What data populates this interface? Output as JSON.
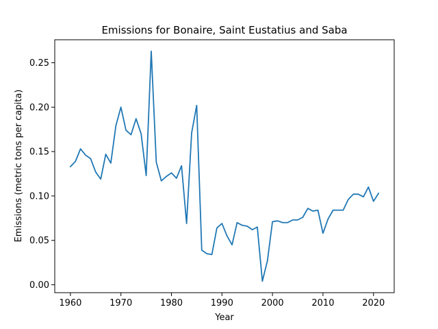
{
  "chart_data": {
    "type": "line",
    "title": "Emissions for Bonaire, Saint Eustatius and Saba",
    "xlabel": "Year",
    "ylabel": "Emissions (metric tons per capita)",
    "xlim": [
      1956.9,
      2024.1
    ],
    "ylim": [
      -0.0089,
      0.2759
    ],
    "x_ticks": [
      1960,
      1970,
      1980,
      1990,
      2000,
      2010,
      2020
    ],
    "y_ticks": [
      0.0,
      0.05,
      0.1,
      0.15,
      0.2,
      0.25
    ],
    "x_tick_labels": [
      "1960",
      "1970",
      "1980",
      "1990",
      "2000",
      "2010",
      "2020"
    ],
    "y_tick_labels": [
      "0.00",
      "0.05",
      "0.10",
      "0.15",
      "0.20",
      "0.25"
    ],
    "grid": false,
    "line_color": "#1f77b4",
    "series": [
      {
        "x": [
          1960,
          1961,
          1962,
          1963,
          1964,
          1965,
          1966,
          1967,
          1968,
          1969,
          1970,
          1971,
          1972,
          1973,
          1974,
          1975,
          1976,
          1977,
          1978,
          1979,
          1980,
          1981,
          1982,
          1983,
          1984,
          1985,
          1986,
          1987,
          1988,
          1989,
          1990,
          1991,
          1992,
          1993,
          1994,
          1995,
          1996,
          1997,
          1998,
          1999,
          2000,
          2001,
          2002,
          2003,
          2004,
          2005,
          2006,
          2007,
          2008,
          2009,
          2010,
          2011,
          2012,
          2013,
          2014,
          2015,
          2016,
          2017,
          2018,
          2019,
          2020,
          2021
        ],
        "values": [
          0.133,
          0.139,
          0.153,
          0.146,
          0.142,
          0.127,
          0.119,
          0.147,
          0.137,
          0.179,
          0.2,
          0.174,
          0.169,
          0.187,
          0.17,
          0.123,
          0.263,
          0.138,
          0.117,
          0.122,
          0.126,
          0.12,
          0.134,
          0.069,
          0.171,
          0.202,
          0.039,
          0.035,
          0.034,
          0.064,
          0.069,
          0.055,
          0.045,
          0.07,
          0.067,
          0.066,
          0.062,
          0.065,
          0.004,
          0.027,
          0.071,
          0.072,
          0.07,
          0.07,
          0.073,
          0.073,
          0.076,
          0.086,
          0.083,
          0.084,
          0.058,
          0.074,
          0.084,
          0.084,
          0.084,
          0.096,
          0.102,
          0.102,
          0.099,
          0.11,
          0.094,
          0.103
        ]
      }
    ]
  }
}
